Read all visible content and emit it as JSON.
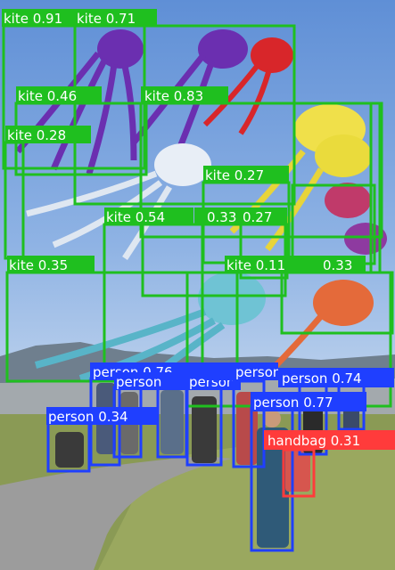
{
  "colors": {
    "kite": "#1fbf1f",
    "person": "#1f3fff",
    "handbag": "#ff3b3b",
    "label_text": "#ffffff"
  },
  "detections": [
    {
      "cls": "kite",
      "score": "0.91"
    },
    {
      "cls": "kite",
      "score": "0.71"
    },
    {
      "cls": "kite",
      "score": "0.46"
    },
    {
      "cls": "kite",
      "score": "0.83"
    },
    {
      "cls": "kite",
      "score": "0.28"
    },
    {
      "cls": "kite",
      "score": "0.27"
    },
    {
      "cls": "kite",
      "score": "0.54"
    },
    {
      "cls": "kite",
      "score": "0.33"
    },
    {
      "cls": "kite",
      "score": "0.27"
    },
    {
      "cls": "kite",
      "score": "0.35"
    },
    {
      "cls": "kite",
      "score": "0.11"
    },
    {
      "cls": "kite",
      "score": "0.33"
    },
    {
      "cls": "person",
      "score": "0.76"
    },
    {
      "cls": "person",
      "score": "0.7"
    },
    {
      "cls": "person",
      "score": "0.7"
    },
    {
      "cls": "person",
      "score": "0.74"
    },
    {
      "cls": "person",
      "score": "0.77"
    },
    {
      "cls": "person",
      "score": "0.34"
    },
    {
      "cls": "person",
      "score": ""
    },
    {
      "cls": "person",
      "score": ""
    },
    {
      "cls": "handbag",
      "score": "0.31"
    }
  ]
}
